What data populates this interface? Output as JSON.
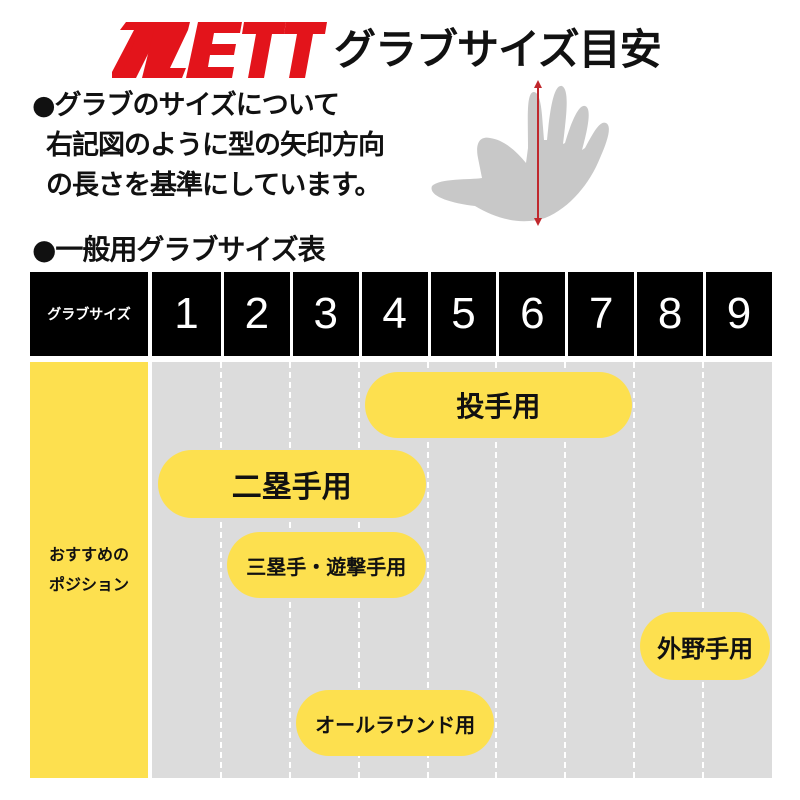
{
  "header": {
    "logo_text": "ZETT",
    "title": "グラブサイズ目安",
    "brand_color": "#e3141b"
  },
  "intro": {
    "lines": [
      "●グラブのサイズについて",
      "右記図のように型の矢印方向",
      "の長さを基準にしています。"
    ]
  },
  "hand_diagram": {
    "icon": "hand-measure-icon",
    "arrow_color": "#c0282d"
  },
  "table": {
    "heading": "●一般用グラブサイズ表",
    "size_label": "グラブサイズ",
    "sizes": [
      "1",
      "2",
      "3",
      "4",
      "5",
      "6",
      "7",
      "8",
      "9"
    ],
    "row_label_lines": [
      "おすすめの",
      "ポジション"
    ],
    "positions": [
      {
        "label": "投手用",
        "from_size": 4,
        "to_size": 7
      },
      {
        "label": "二塁手用",
        "from_size": 1,
        "to_size": 4
      },
      {
        "label": "三塁手・遊撃手用",
        "from_size": 2,
        "to_size": 4
      },
      {
        "label": "外野手用",
        "from_size": 8,
        "to_size": 9
      },
      {
        "label": "オールラウンド用",
        "from_size": 3,
        "to_size": 5
      }
    ],
    "highlight_color": "#fde04f"
  }
}
